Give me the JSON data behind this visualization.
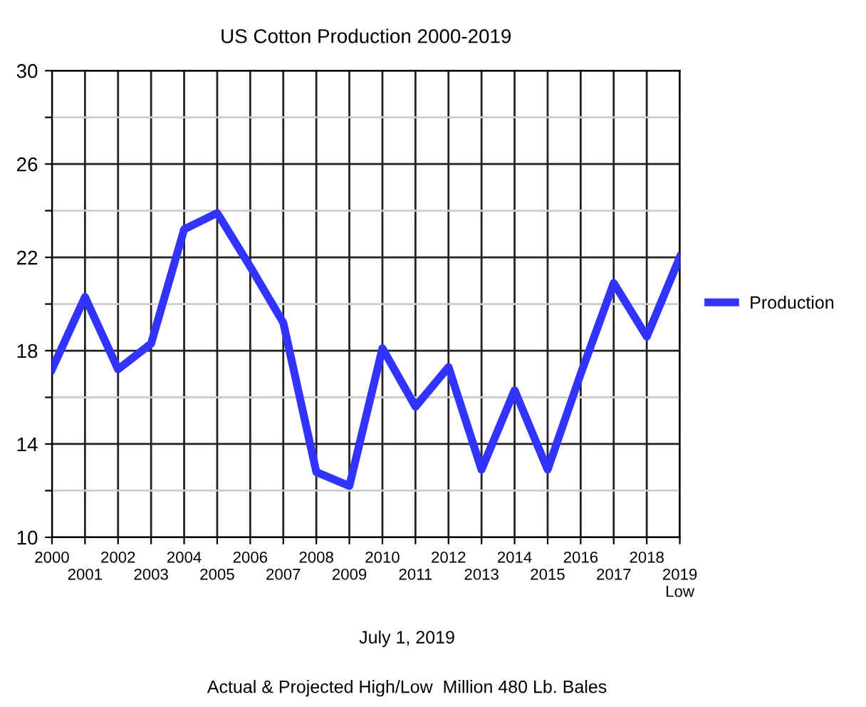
{
  "chart_data": {
    "type": "line",
    "title": "US Cotton Production 2000-2019",
    "categories": [
      "2000",
      "2001",
      "2002",
      "2003",
      "2004",
      "2005",
      "2006",
      "2007",
      "2008",
      "2009",
      "2010",
      "2011",
      "2012",
      "2013",
      "2014",
      "2015",
      "2016",
      "2017",
      "2018",
      "2019\nLow"
    ],
    "series": [
      {
        "name": "Production",
        "color": "#3333ff",
        "values": [
          17.2,
          20.3,
          17.2,
          18.3,
          23.2,
          23.9,
          21.6,
          19.2,
          12.8,
          12.2,
          18.1,
          15.6,
          17.3,
          12.9,
          16.3,
          12.9,
          17.0,
          20.9,
          18.6,
          22.0
        ]
      }
    ],
    "ylim": [
      10,
      30
    ],
    "yticks": [
      10,
      {
        "value": 12,
        "label": null
      },
      14,
      {
        "value": 16,
        "label": null
      },
      18,
      {
        "value": 20,
        "label": null
      },
      22,
      {
        "value": 24,
        "label": null
      },
      26,
      {
        "value": 28,
        "label": null
      },
      30
    ],
    "grid": true,
    "legend": "right",
    "marker": "none",
    "line_style": "solid",
    "annotations": [
      "July 1, 2019",
      "Actual & Projected High/Low  Million 480 Lb. Bales"
    ]
  }
}
